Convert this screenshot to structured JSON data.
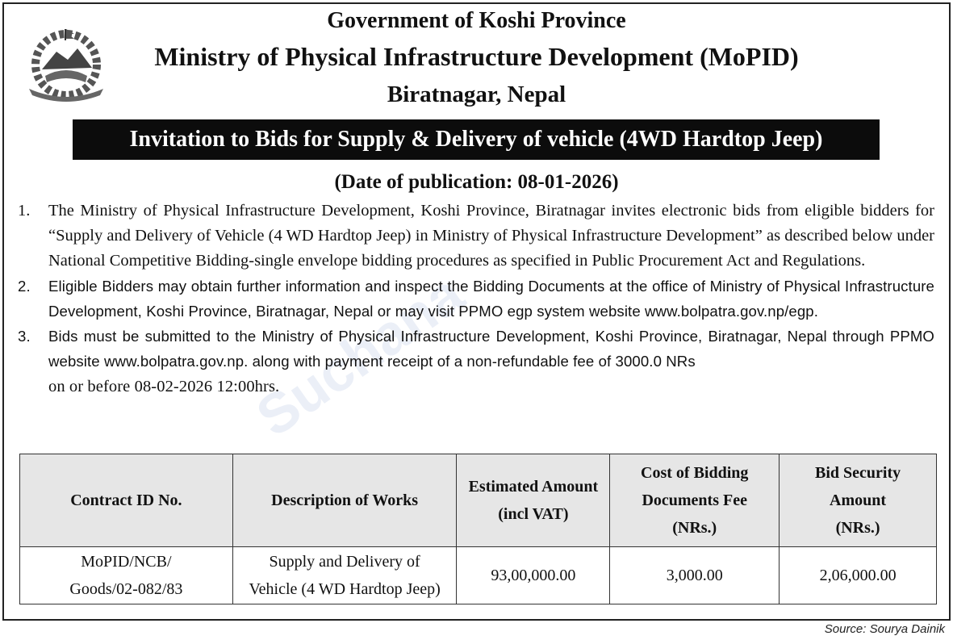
{
  "header": {
    "line1": "Government of Koshi Province",
    "line2": "Ministry of Physical Infrastructure Development (MoPID)",
    "line3": "Biratnagar, Nepal",
    "logo_icon": "nepal-emblem-icon"
  },
  "banner": "Invitation to Bids for Supply & Delivery of vehicle (4WD Hardtop Jeep)",
  "date_line": "(Date of publication: 08-01-2026)",
  "items": [
    {
      "num": "1.",
      "text": "The Ministry of Physical Infrastructure Development, Koshi Province, Biratnagar invites electronic bids from eligible bidders for “Supply and Delivery of Vehicle (4 WD Hardtop Jeep) in Ministry of Physical Infrastructure Development” as described below under National Competitive Bidding-single envelope bidding procedures as specified in Public Procurement Act and Regulations."
    },
    {
      "num": "2.",
      "text": "Eligible Bidders may obtain further information and inspect the Bidding Documents at the office of Ministry of Physical Infrastructure Development, Koshi Province, Biratnagar, Nepal or may visit PPMO egp system website www.bolpatra.gov.np/egp."
    },
    {
      "num": "3.",
      "text": "Bids must be submitted to the Ministry of Physical Infrastructure Development, Koshi Province, Biratnagar, Nepal through PPMO website www.bolpatra.gov.np. along with payment receipt of a non-refundable fee of 3000.0 NRs",
      "text_end": "on or before 08-02-2026 12:00hrs."
    }
  ],
  "table": {
    "headers": [
      "Contract ID No.",
      "Description of Works",
      "Estimated Amount (incl VAT)",
      "Cost of Bidding Documents Fee (NRs.)",
      "Bid Security Amount (NRs.)"
    ],
    "header_lines": [
      [
        "Contract ID No."
      ],
      [
        "Description of Works"
      ],
      [
        "Estimated Amount",
        "(incl VAT)"
      ],
      [
        "Cost of Bidding",
        "Documents Fee",
        "(NRs.)"
      ],
      [
        "Bid Security",
        "Amount",
        "(NRs.)"
      ]
    ],
    "rows": [
      {
        "contract_id": [
          "MoPID/NCB/",
          "Goods/02-082/83"
        ],
        "description": [
          "Supply and Delivery of",
          "Vehicle (4 WD Hardtop Jeep)"
        ],
        "estimated": "93,00,000.00",
        "doc_fee": "3,000.00",
        "bid_security": "2,06,000.00"
      }
    ]
  },
  "watermark": "Suchana",
  "source": "Source: Sourya Dainik"
}
